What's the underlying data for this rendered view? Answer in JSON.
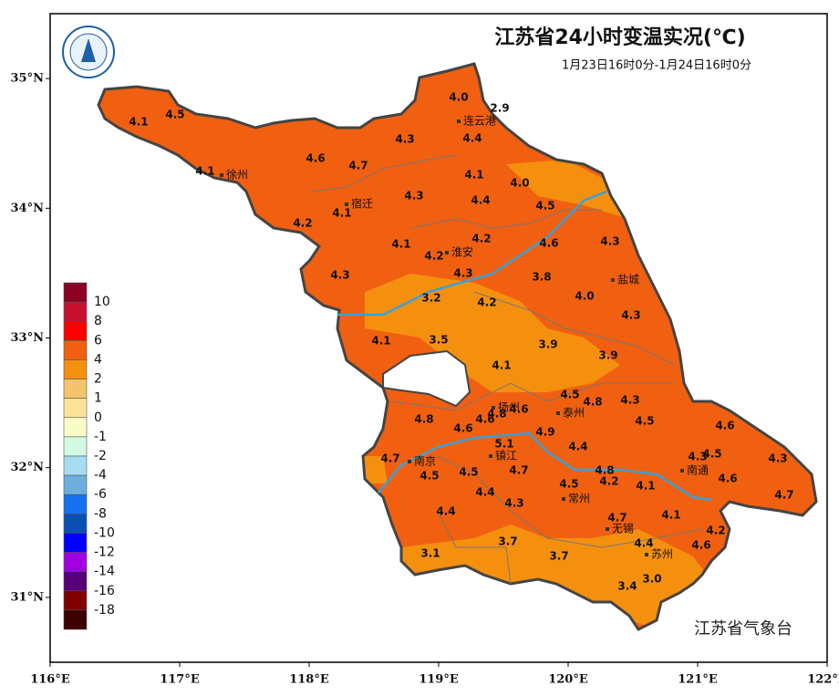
{
  "title": "江苏省24小时变温实况(℃)",
  "subtitle": "1月23日16时0分-1月24日16时0分",
  "source": "江苏省气象台",
  "map": {
    "xlim": [
      116,
      122
    ],
    "ylim": [
      30.5,
      35.5
    ],
    "xticks": [
      {
        "value": 116,
        "label": "116°E"
      },
      {
        "value": 117,
        "label": "117°E"
      },
      {
        "value": 118,
        "label": "118°E"
      },
      {
        "value": 119,
        "label": "119°E"
      },
      {
        "value": 120,
        "label": "120°E"
      },
      {
        "value": 121,
        "label": "121°E"
      },
      {
        "value": 122,
        "label": "122°E"
      }
    ],
    "yticks": [
      {
        "value": 31,
        "label": "31°N"
      },
      {
        "value": 32,
        "label": "32°N"
      },
      {
        "value": 33,
        "label": "33°N"
      },
      {
        "value": 34,
        "label": "34°N"
      },
      {
        "value": 35,
        "label": "35°N"
      }
    ]
  },
  "legend": {
    "colors": [
      "#8b0024",
      "#c8102e",
      "#ff0000",
      "#f06010",
      "#f5900e",
      "#f5c46a",
      "#fae396",
      "#fafcc8",
      "#d2fae2",
      "#a6dcf0",
      "#6eaedc",
      "#1472f0",
      "#0a50b4",
      "#0000ff",
      "#a000e0",
      "#580078",
      "#800000",
      "#3c0000"
    ],
    "labels": [
      10,
      8,
      6,
      4,
      2,
      1,
      0,
      -1,
      -2,
      -4,
      -6,
      -8,
      -10,
      -12,
      -14,
      -16,
      -18
    ]
  },
  "stations": {
    "values": [
      4,
      2.9,
      4.1,
      4.5,
      4.4,
      4.3,
      4.6,
      4.7,
      4.1,
      4.1,
      4,
      4.3,
      4.4,
      4.5,
      4.1,
      4.2,
      4.2,
      4.6,
      4.3,
      4.1,
      4.2,
      4.3,
      4.3,
      3.8,
      4,
      3.2,
      4.2,
      4.3,
      4.1,
      3.5,
      3.9,
      3.9,
      4.1,
      4.5,
      4.8,
      4.3,
      4.8,
      4.6,
      4.8,
      4.6,
      4.6,
      4.5,
      4.6,
      4.9,
      5.1,
      4.4,
      4.7,
      4.3,
      4.5,
      4.3,
      4.5,
      4.5,
      4.7,
      4.8,
      4.5,
      4.2,
      4.1,
      4.6,
      4.4,
      4.3,
      4.7,
      4.4,
      4.7,
      4.1,
      4.2,
      3.7,
      4.4,
      4.6,
      3.1,
      3.7,
      3,
      3.4
    ],
    "value_labels": [
      "4.0",
      "2.9",
      "4.1",
      "4.5",
      "4.4",
      "4.3",
      "4.6",
      "4.7",
      "4.1",
      "4.1",
      "4.0",
      "4.3",
      "4.4",
      "4.5",
      "4.1",
      "4.2",
      "4.2",
      "4.6",
      "4.3",
      "4.1",
      "4.2",
      "4.3",
      "4.3",
      "3.8",
      "4.0",
      "3.2",
      "4.2",
      "4.3",
      "4.1",
      "3.5",
      "3.9",
      "3.9",
      "4.1",
      "4.5",
      "4.8",
      "4.3",
      "4.8",
      "4.6",
      "4.8",
      "4.6",
      "4.6",
      "4.5",
      "4.6",
      "4.9",
      "5.1",
      "4.4",
      "4.7",
      "4.3",
      "4.5",
      "4.3",
      "4.5",
      "4.5",
      "4.7",
      "4.8",
      "4.5",
      "4.2",
      "4.1",
      "4.6",
      "4.4",
      "4.3",
      "4.7",
      "4.4",
      "4.7",
      "4.1",
      "4.2",
      "3.7",
      "4.4",
      "4.6",
      "3.1",
      "3.7",
      "3.0",
      "3.4"
    ]
  },
  "cities": [
    "连云港",
    "徐州",
    "宿迁",
    "淮安",
    "盐城",
    "扬州",
    "泰州",
    "南京",
    "镇江",
    "南通",
    "常州",
    "无锡",
    "苏州"
  ]
}
